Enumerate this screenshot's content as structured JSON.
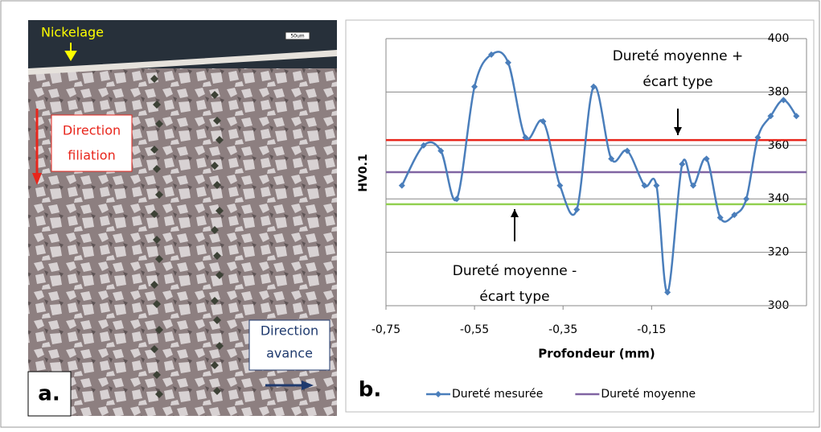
{
  "panel_a": {
    "label": "a.",
    "scale_bar": "50um",
    "coating": "Nickelage",
    "direction_depth": [
      "Direction",
      "filiation"
    ],
    "direction_feed": [
      "Direction",
      "avance"
    ]
  },
  "chart_data": {
    "type": "line",
    "panel_label": "b.",
    "x_label": "Profondeur (mm)",
    "y_label": "HV0.1",
    "xlim": [
      -0.75,
      0.2
    ],
    "xticks": [
      {
        "value": -0.75,
        "label": "-0,75"
      },
      {
        "value": -0.55,
        "label": "-0,55"
      },
      {
        "value": -0.35,
        "label": "-0,35"
      },
      {
        "value": -0.15,
        "label": "-0,15"
      }
    ],
    "ylim": [
      300,
      400
    ],
    "yticks": [
      300,
      320,
      340,
      360,
      380,
      400
    ],
    "grid": true,
    "x": [
      -0.714,
      -0.665,
      -0.626,
      -0.59,
      -0.55,
      -0.512,
      -0.474,
      -0.435,
      -0.395,
      -0.357,
      -0.319,
      -0.281,
      -0.241,
      -0.205,
      -0.166,
      -0.139,
      -0.114,
      -0.081,
      -0.056,
      -0.026,
      0.005,
      0.037,
      0.064,
      0.09,
      0.119,
      0.148,
      0.177
    ],
    "series": [
      {
        "name": "Dureté mesurée",
        "color": "#4a7ebb",
        "values": [
          345,
          360,
          358,
          340,
          382,
          394,
          391,
          363,
          369,
          345,
          336,
          382,
          355,
          358,
          345,
          345,
          305,
          353,
          345,
          355,
          333,
          334,
          340,
          363,
          371,
          377,
          371
        ]
      }
    ],
    "reference_lines": [
      {
        "value": 362,
        "color": "#e8261c"
      },
      {
        "name": "Dureté moyenne",
        "value": 350,
        "color": "#8064a2"
      },
      {
        "value": 338,
        "color": "#92d050"
      }
    ],
    "annotations": [
      {
        "lines": [
          "Dureté moyenne +",
          "écart type"
        ]
      },
      {
        "lines": [
          "Dureté moyenne -",
          "écart type"
        ]
      }
    ]
  }
}
